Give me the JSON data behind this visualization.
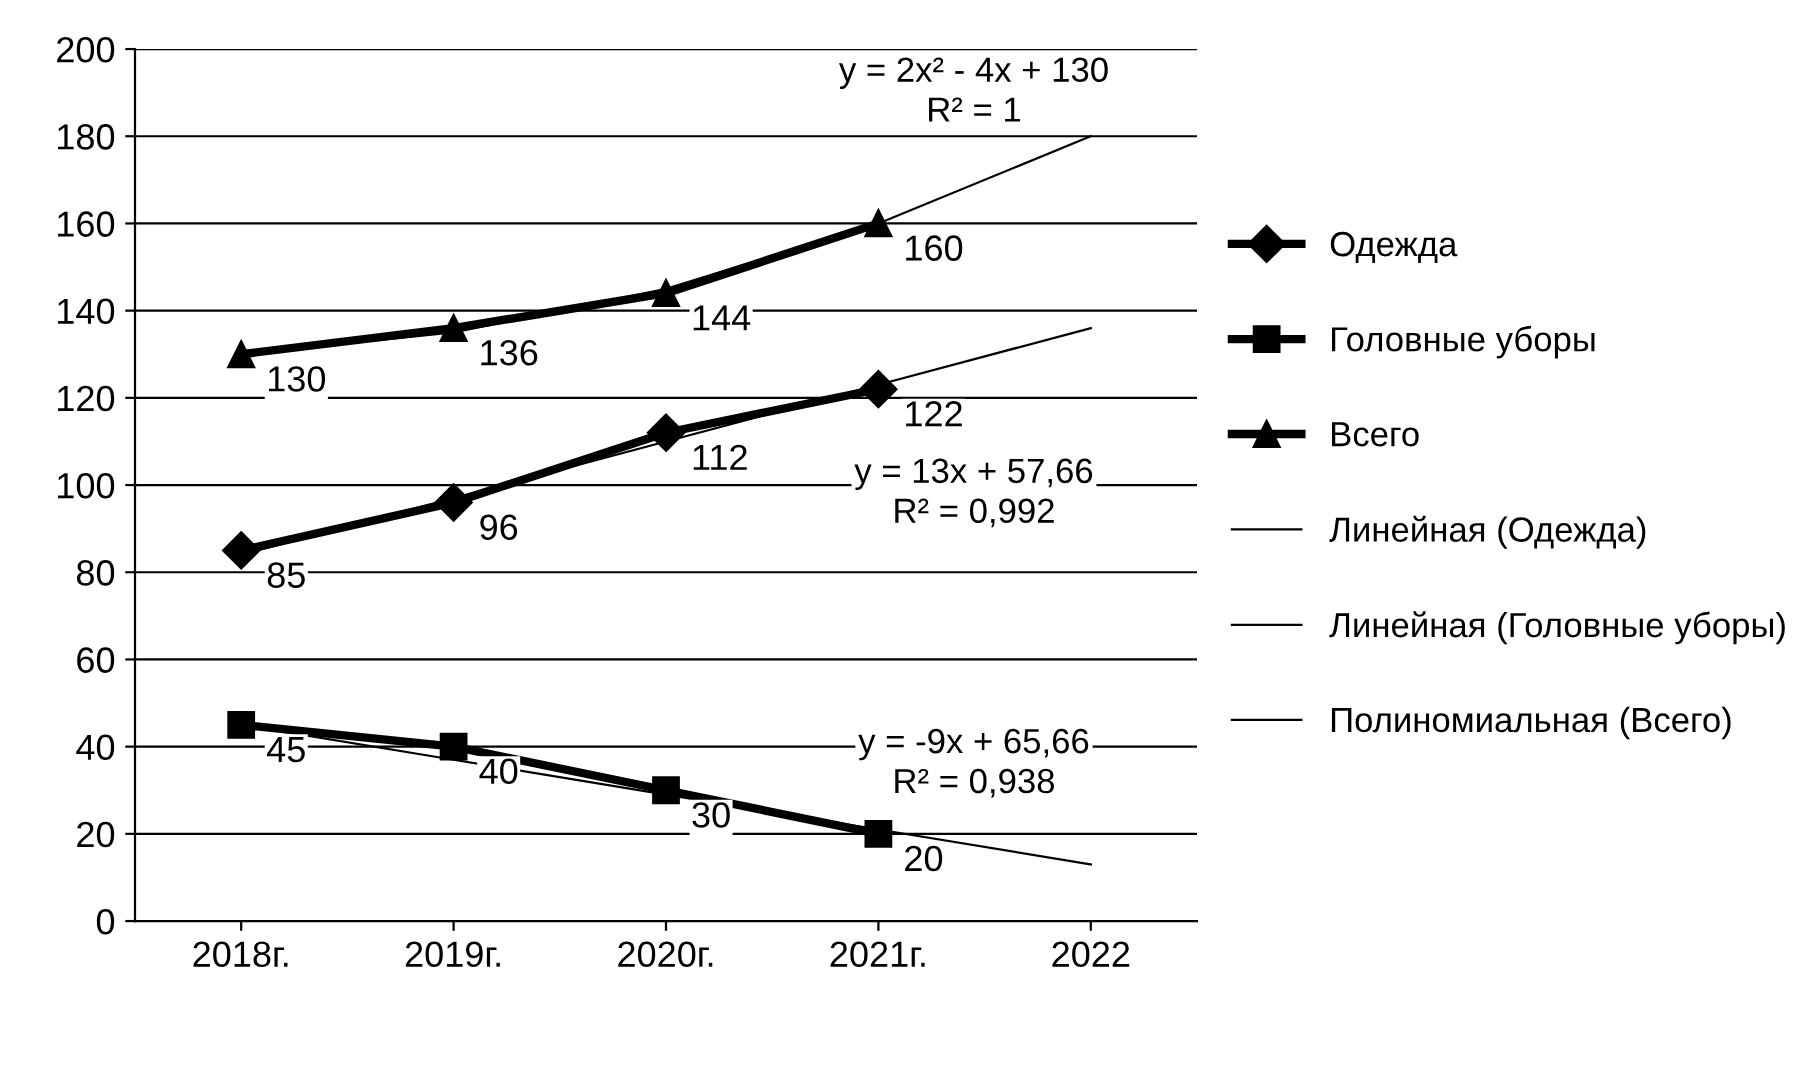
{
  "chart_data": {
    "type": "line",
    "categories": [
      "2018г.",
      "2019г.",
      "2020г.",
      "2021г.",
      "2022"
    ],
    "series": [
      {
        "name": "Одежда",
        "color": "#000000",
        "marker": "diamond",
        "values": [
          85,
          96,
          112,
          122,
          null
        ],
        "value_labels": [
          "85",
          "96",
          "112",
          "122",
          null
        ]
      },
      {
        "name": "Головные уборы",
        "color": "#000000",
        "marker": "square",
        "values": [
          45,
          40,
          30,
          20,
          null
        ],
        "value_labels": [
          "45",
          "40",
          "30",
          "20",
          null
        ]
      },
      {
        "name": "Всего",
        "color": "#000000",
        "marker": "triangle",
        "values": [
          130,
          136,
          144,
          160,
          null
        ],
        "value_labels": [
          "130",
          "136",
          "144",
          "160",
          null
        ]
      },
      {
        "name": "Линейная (Одежда)",
        "color": "#000000",
        "marker": "none",
        "values": [
          84,
          97,
          110,
          123,
          136
        ]
      },
      {
        "name": "Линейная (Головные уборы)",
        "color": "#000000",
        "marker": "none",
        "values": [
          45,
          37,
          29,
          21,
          13
        ]
      },
      {
        "name": "Полиномиальная (Всего)",
        "color": "#000000",
        "marker": "none",
        "values": [
          130,
          135,
          145,
          160,
          180
        ]
      }
    ],
    "annotations": [
      "y = 13x + 57,66\nR² = 0,992",
      "y = -9x + 65,66\nR² = 0,938",
      "y = 2x² - 4x + 130\nR² = 1"
    ],
    "ylim": [
      0,
      200
    ],
    "yticks": [
      0,
      20,
      40,
      60,
      80,
      100,
      120,
      140,
      160,
      180,
      200
    ],
    "grid": "y",
    "legend": "right"
  }
}
